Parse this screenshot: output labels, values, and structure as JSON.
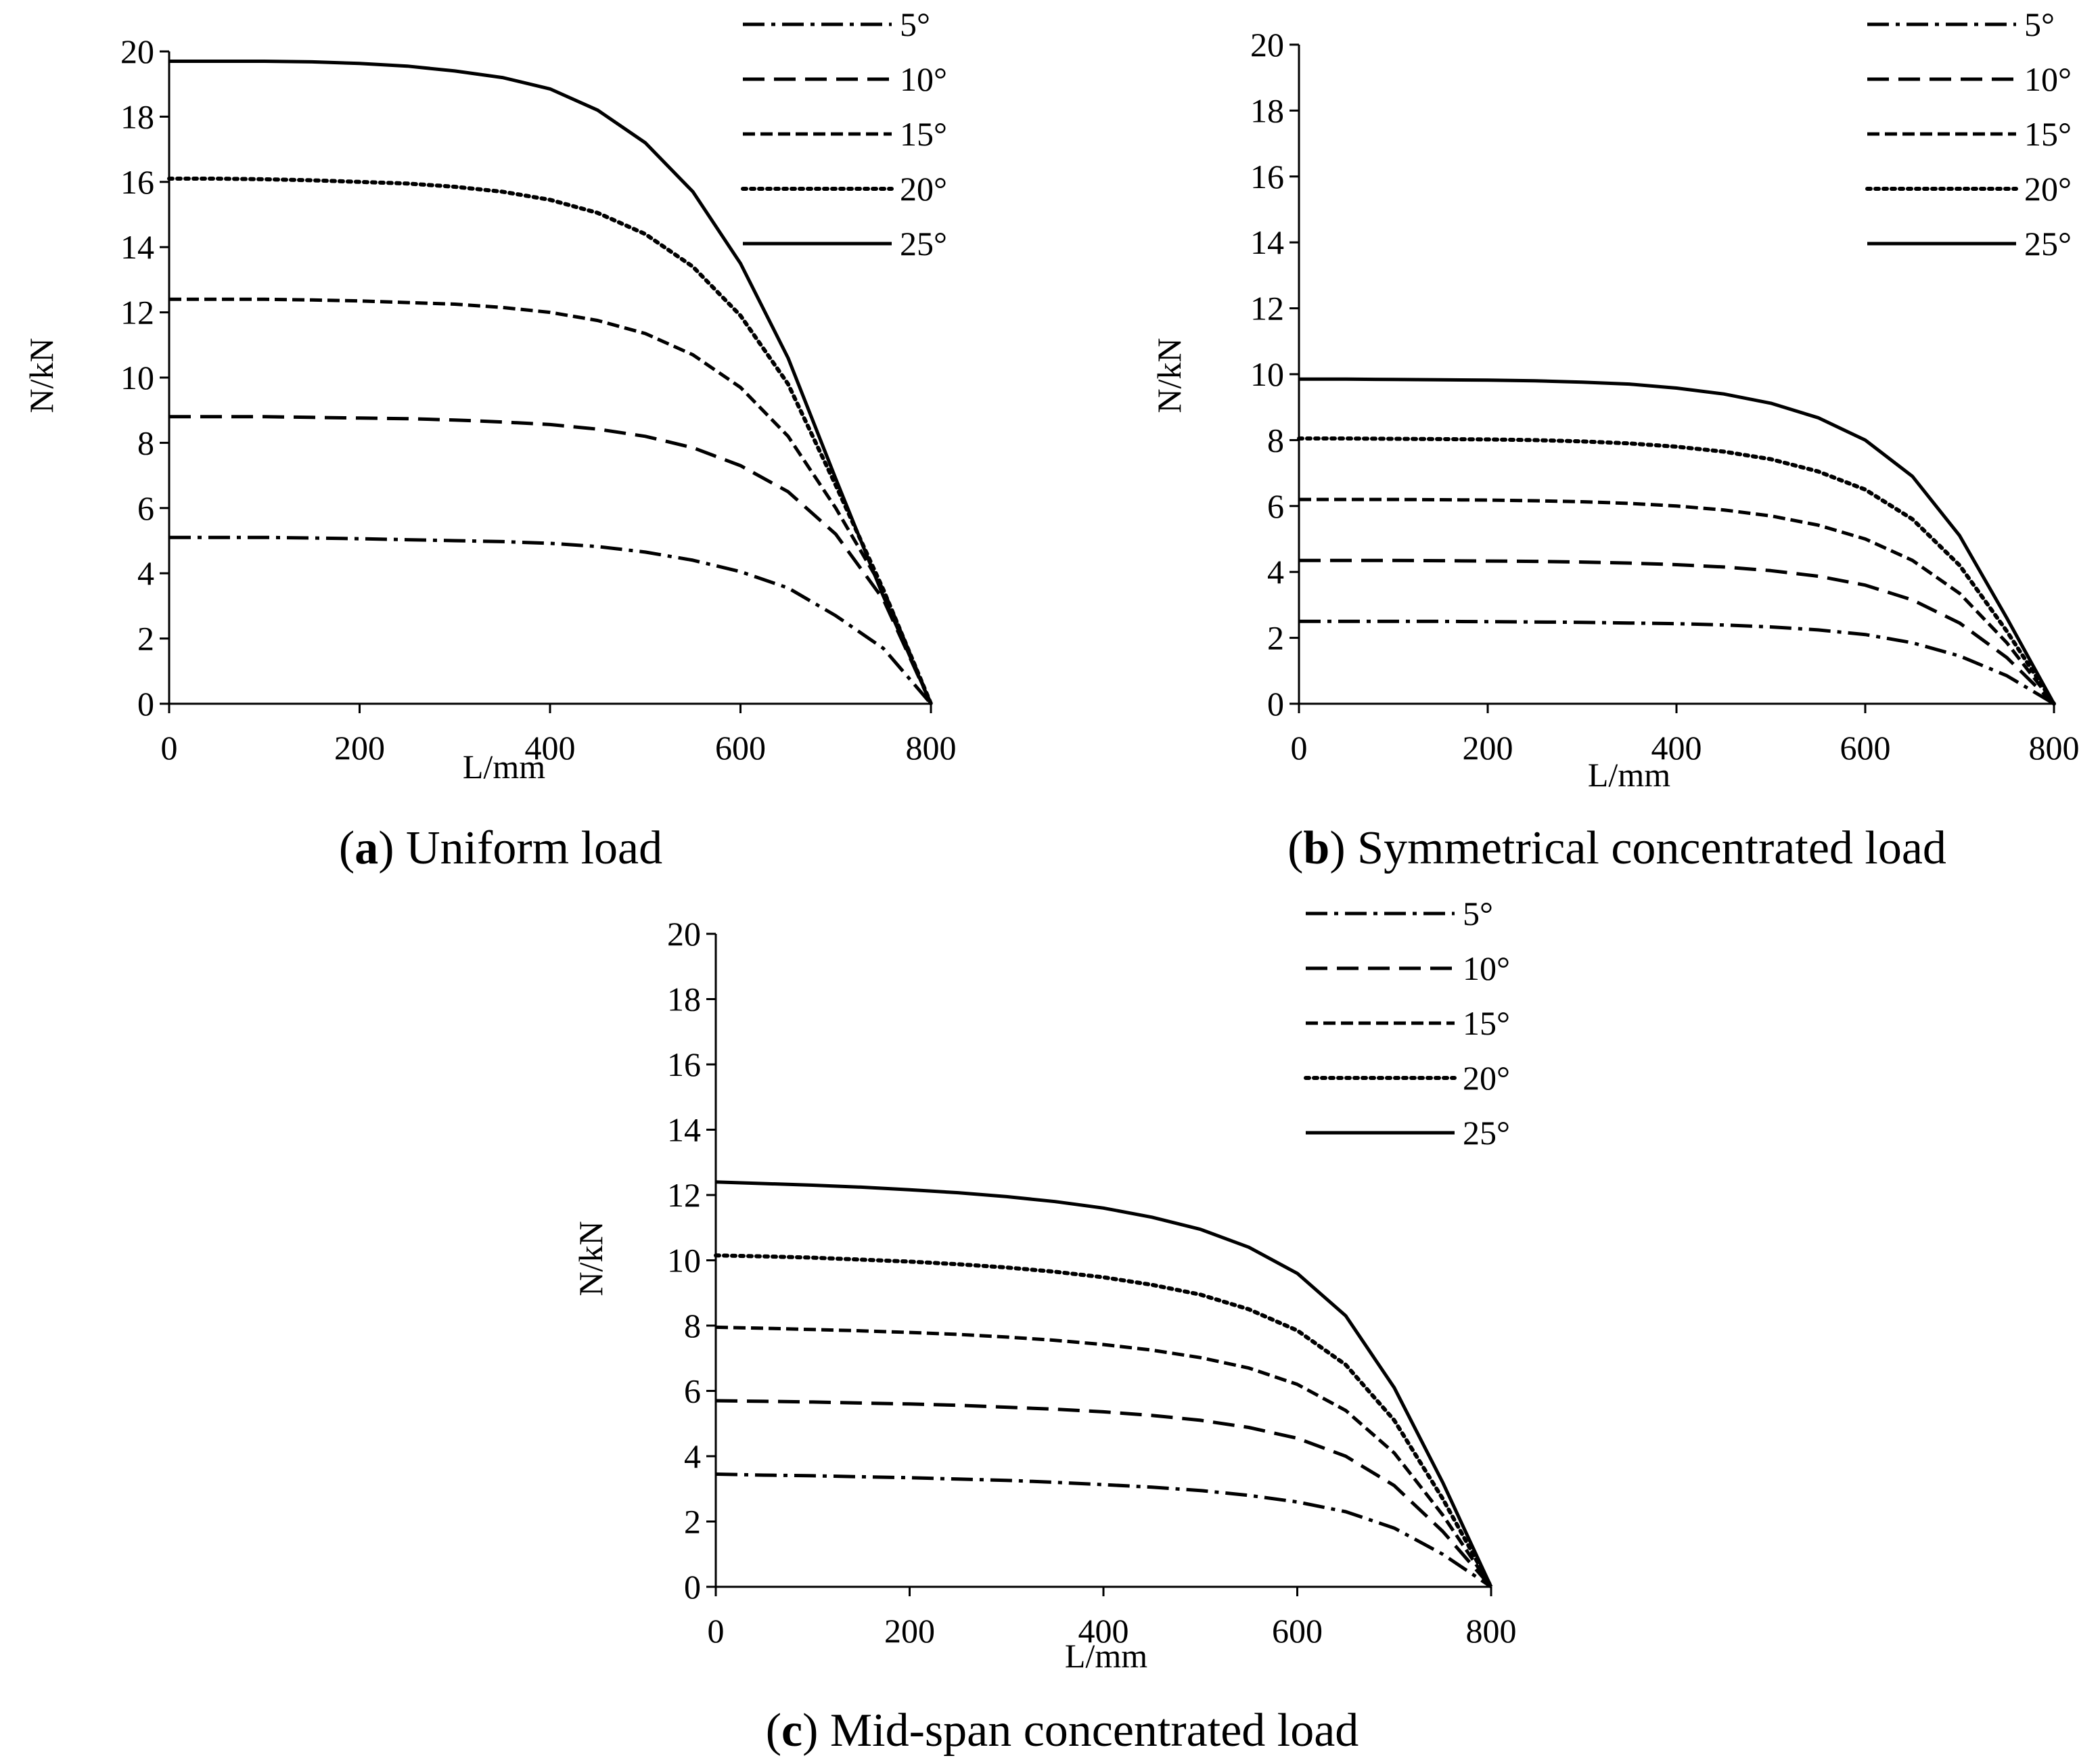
{
  "chart_data": [
    {
      "id": "a",
      "type": "line",
      "caption_letter": "a",
      "caption_text": " Uniform load",
      "xlabel": "L/mm",
      "ylabel": "N/kN",
      "xlim": [
        0,
        800
      ],
      "ylim": [
        0,
        20
      ],
      "xticks": [
        0,
        200,
        400,
        600,
        800
      ],
      "yticks": [
        0,
        2,
        4,
        6,
        8,
        10,
        12,
        14,
        16,
        18,
        20
      ],
      "x": [
        0,
        50,
        100,
        150,
        200,
        250,
        300,
        350,
        400,
        450,
        500,
        550,
        600,
        650,
        700,
        750,
        800
      ],
      "series": [
        {
          "name": "5°",
          "style": "dashdot",
          "values": [
            5.1,
            5.1,
            5.1,
            5.08,
            5.06,
            5.03,
            5.0,
            4.97,
            4.92,
            4.82,
            4.65,
            4.4,
            4.05,
            3.55,
            2.7,
            1.7,
            0
          ]
        },
        {
          "name": "10°",
          "style": "longdash",
          "values": [
            8.8,
            8.8,
            8.8,
            8.78,
            8.76,
            8.74,
            8.7,
            8.64,
            8.56,
            8.42,
            8.2,
            7.85,
            7.3,
            6.5,
            5.2,
            3.2,
            0
          ]
        },
        {
          "name": "15°",
          "style": "dash",
          "values": [
            12.4,
            12.4,
            12.4,
            12.38,
            12.35,
            12.3,
            12.25,
            12.15,
            12.0,
            11.75,
            11.35,
            10.7,
            9.7,
            8.2,
            6.0,
            3.5,
            0
          ]
        },
        {
          "name": "20°",
          "style": "dot",
          "values": [
            16.1,
            16.1,
            16.08,
            16.05,
            16.0,
            15.95,
            15.85,
            15.7,
            15.45,
            15.05,
            14.4,
            13.4,
            11.9,
            9.8,
            6.7,
            3.5,
            0
          ]
        },
        {
          "name": "25°",
          "style": "solid",
          "values": [
            19.7,
            19.7,
            19.7,
            19.68,
            19.63,
            19.55,
            19.4,
            19.2,
            18.85,
            18.2,
            17.2,
            15.7,
            13.5,
            10.6,
            6.9,
            3.3,
            0
          ]
        }
      ]
    },
    {
      "id": "b",
      "type": "line",
      "caption_letter": "b",
      "caption_text": " Symmetrical concentrated load",
      "xlabel": "L/mm",
      "ylabel": "N/kN",
      "xlim": [
        0,
        800
      ],
      "ylim": [
        0,
        20
      ],
      "xticks": [
        0,
        200,
        400,
        600,
        800
      ],
      "yticks": [
        0,
        2,
        4,
        6,
        8,
        10,
        12,
        14,
        16,
        18,
        20
      ],
      "x": [
        0,
        50,
        100,
        150,
        200,
        250,
        300,
        350,
        400,
        450,
        500,
        550,
        600,
        650,
        700,
        750,
        800
      ],
      "series": [
        {
          "name": "5°",
          "style": "dashdot",
          "values": [
            2.5,
            2.5,
            2.5,
            2.5,
            2.49,
            2.48,
            2.47,
            2.45,
            2.43,
            2.39,
            2.33,
            2.24,
            2.1,
            1.85,
            1.45,
            0.85,
            0
          ]
        },
        {
          "name": "10°",
          "style": "longdash",
          "values": [
            4.35,
            4.35,
            4.35,
            4.34,
            4.33,
            4.32,
            4.3,
            4.27,
            4.22,
            4.15,
            4.04,
            3.87,
            3.6,
            3.15,
            2.45,
            1.4,
            0
          ]
        },
        {
          "name": "15°",
          "style": "dash",
          "values": [
            6.2,
            6.2,
            6.2,
            6.19,
            6.18,
            6.16,
            6.13,
            6.08,
            6.0,
            5.88,
            5.7,
            5.42,
            5.0,
            4.35,
            3.35,
            1.85,
            0
          ]
        },
        {
          "name": "20°",
          "style": "dot",
          "values": [
            8.05,
            8.05,
            8.04,
            8.03,
            8.02,
            8.0,
            7.96,
            7.9,
            7.8,
            7.65,
            7.42,
            7.05,
            6.5,
            5.6,
            4.2,
            2.2,
            0
          ]
        },
        {
          "name": "25°",
          "style": "solid",
          "values": [
            9.85,
            9.85,
            9.84,
            9.83,
            9.82,
            9.8,
            9.76,
            9.7,
            9.58,
            9.4,
            9.12,
            8.68,
            8.0,
            6.9,
            5.1,
            2.6,
            0
          ]
        }
      ]
    },
    {
      "id": "c",
      "type": "line",
      "caption_letter": "c",
      "caption_text": " Mid-span concentrated load",
      "xlabel": "L/mm",
      "ylabel": "N/kN",
      "xlim": [
        0,
        800
      ],
      "ylim": [
        0,
        20
      ],
      "xticks": [
        0,
        200,
        400,
        600,
        800
      ],
      "yticks": [
        0,
        2,
        4,
        6,
        8,
        10,
        12,
        14,
        16,
        18,
        20
      ],
      "x": [
        0,
        50,
        100,
        150,
        200,
        250,
        300,
        350,
        400,
        450,
        500,
        550,
        600,
        650,
        700,
        750,
        800
      ],
      "series": [
        {
          "name": "5°",
          "style": "dashdot",
          "values": [
            3.45,
            3.42,
            3.4,
            3.37,
            3.34,
            3.3,
            3.26,
            3.2,
            3.13,
            3.05,
            2.95,
            2.8,
            2.6,
            2.3,
            1.8,
            1.0,
            0
          ]
        },
        {
          "name": "10°",
          "style": "longdash",
          "values": [
            5.7,
            5.68,
            5.66,
            5.63,
            5.6,
            5.56,
            5.5,
            5.44,
            5.36,
            5.25,
            5.1,
            4.88,
            4.55,
            4.0,
            3.1,
            1.7,
            0
          ]
        },
        {
          "name": "15°",
          "style": "dash",
          "values": [
            7.95,
            7.92,
            7.88,
            7.84,
            7.79,
            7.73,
            7.65,
            7.55,
            7.42,
            7.25,
            7.02,
            6.7,
            6.2,
            5.4,
            4.1,
            2.2,
            0
          ]
        },
        {
          "name": "20°",
          "style": "dot",
          "values": [
            10.15,
            10.12,
            10.08,
            10.02,
            9.96,
            9.88,
            9.78,
            9.65,
            9.48,
            9.25,
            8.95,
            8.5,
            7.85,
            6.8,
            5.1,
            2.7,
            0
          ]
        },
        {
          "name": "25°",
          "style": "solid",
          "values": [
            12.4,
            12.35,
            12.3,
            12.24,
            12.16,
            12.07,
            11.95,
            11.8,
            11.6,
            11.32,
            10.95,
            10.4,
            9.6,
            8.3,
            6.1,
            3.2,
            0
          ]
        }
      ]
    }
  ]
}
